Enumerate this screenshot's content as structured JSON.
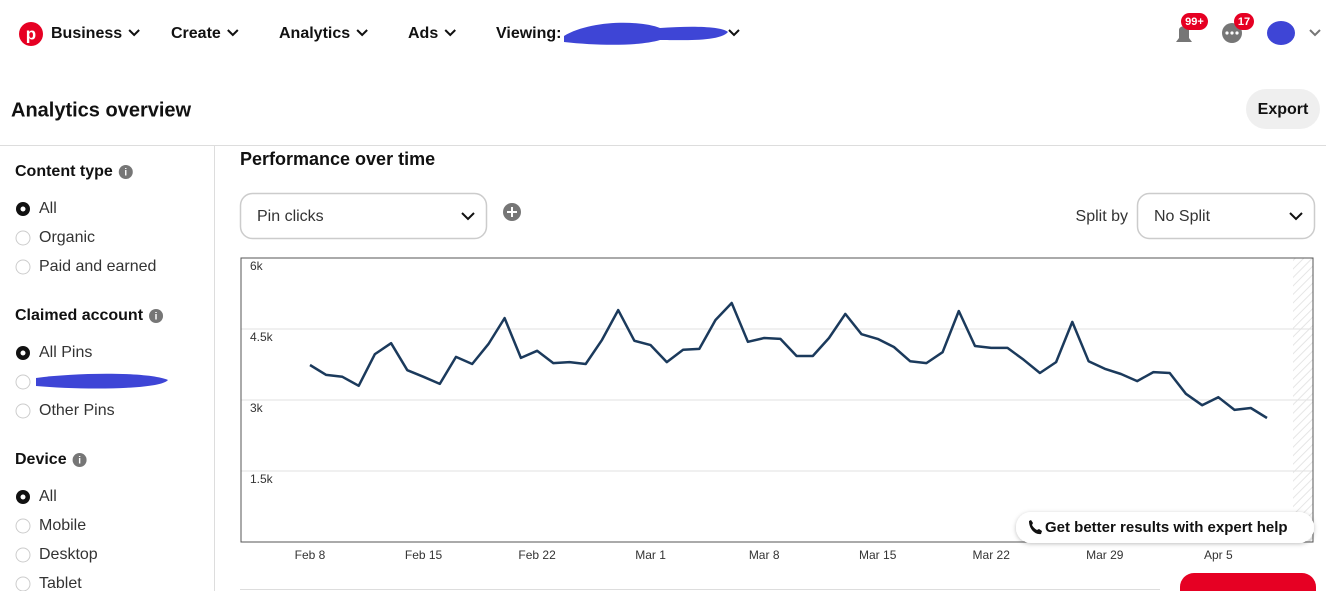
{
  "nav": {
    "items": [
      "Business",
      "Create",
      "Analytics",
      "Ads",
      "Viewing:"
    ],
    "notifications": "99+",
    "messages": "17"
  },
  "header": {
    "title": "Analytics overview",
    "export": "Export"
  },
  "sidebar": {
    "groups": [
      {
        "title": "Content type",
        "options": [
          "All",
          "Organic",
          "Paid and earned"
        ]
      },
      {
        "title": "Claimed account",
        "options": [
          "All Pins",
          "Other Pins"
        ]
      },
      {
        "title": "Device",
        "options": [
          "All",
          "Mobile",
          "Desktop",
          "Tablet"
        ]
      }
    ]
  },
  "chart_data": {
    "type": "line",
    "title": "Performance over time",
    "metric": "Pin clicks",
    "split_label": "Split by",
    "split": "No Split",
    "x": [
      "Feb 8",
      null,
      null,
      null,
      null,
      null,
      null,
      "Feb 15",
      null,
      null,
      null,
      null,
      null,
      null,
      "Feb 22",
      null,
      null,
      null,
      null,
      null,
      null,
      "Mar 1",
      null,
      null,
      null,
      null,
      null,
      null,
      "Mar 8",
      null,
      null,
      null,
      null,
      null,
      null,
      "Mar 15",
      null,
      null,
      null,
      null,
      null,
      null,
      "Mar 22",
      null,
      null,
      null,
      null,
      null,
      null,
      "Mar 29",
      null,
      null,
      null,
      null,
      null,
      null,
      "Apr 5",
      null,
      null,
      null
    ],
    "series": [
      {
        "color": "#1b3a5c",
        "values": [
          3740,
          3530,
          3490,
          3300,
          3970,
          4200,
          3630,
          3490,
          3340,
          3910,
          3760,
          4180,
          4730,
          3890,
          4040,
          3780,
          3800,
          3760,
          4270,
          4900,
          4250,
          4160,
          3800,
          4060,
          4080,
          4690,
          5050,
          4230,
          4310,
          4290,
          3930,
          3930,
          4310,
          4820,
          4390,
          4290,
          4120,
          3820,
          3780,
          4010,
          4880,
          4140,
          4100,
          4100,
          3850,
          3570,
          3800,
          4650,
          3820,
          3660,
          3550,
          3400,
          3590,
          3570,
          3130,
          2890,
          3060,
          2790,
          2830,
          2620
        ]
      }
    ],
    "ylim": [
      0,
      6000
    ],
    "yticks": [
      {
        "value": 1500,
        "label": "1.5k"
      },
      {
        "value": 3000,
        "label": "3k"
      },
      {
        "value": 4500,
        "label": "4.5k"
      },
      {
        "value": 6000,
        "label": "6k"
      }
    ],
    "grid": true
  },
  "help": "Get better results with expert help"
}
